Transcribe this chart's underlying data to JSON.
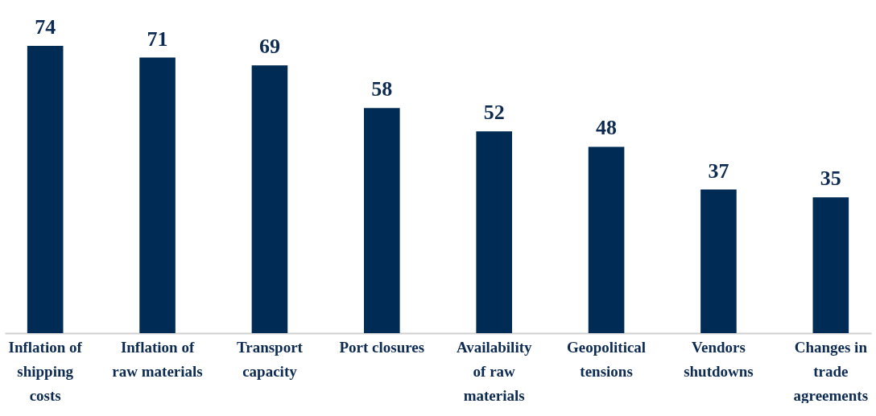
{
  "chart_data": {
    "type": "bar",
    "categories": [
      "Inflation of shipping costs",
      "Inflation of raw materials",
      "Transport capacity",
      "Port closures",
      "Availability of raw materials",
      "Geopolitical tensions",
      "Vendors shutdowns",
      "Changes in trade agreements"
    ],
    "values": [
      74,
      71,
      69,
      58,
      52,
      48,
      37,
      35
    ],
    "color": "#002b55",
    "data_labels": true
  }
}
